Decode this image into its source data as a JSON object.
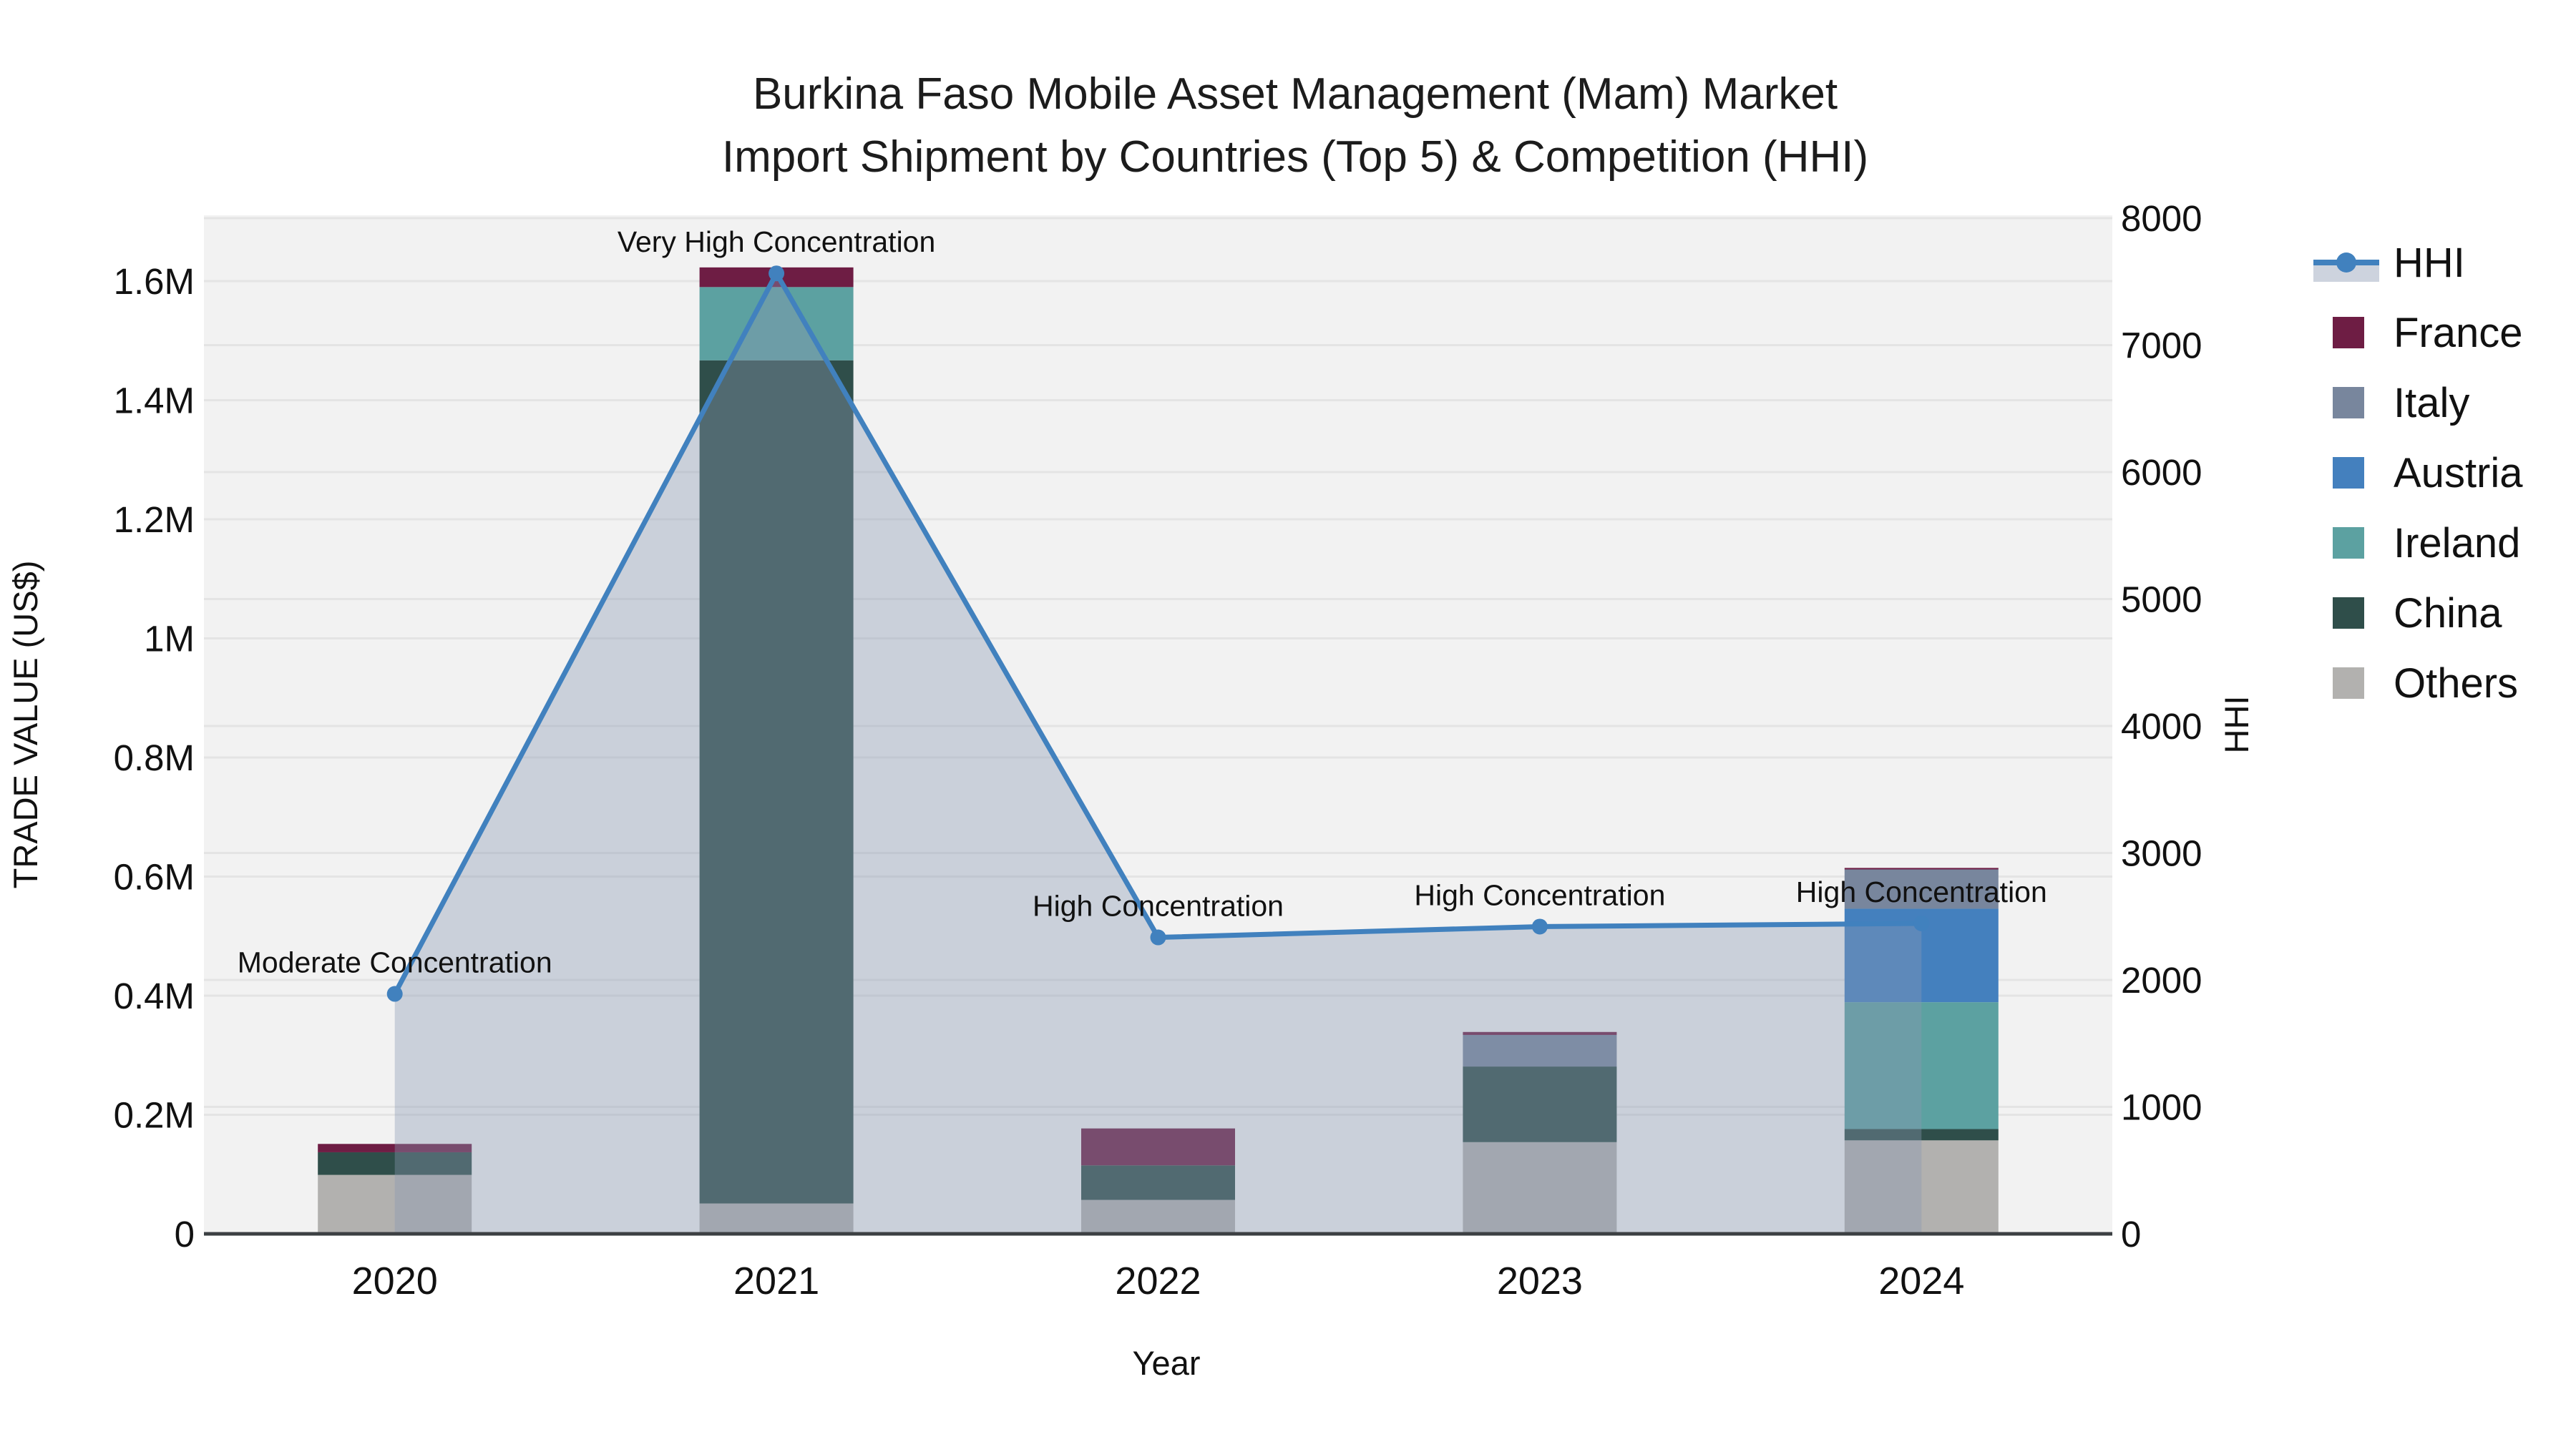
{
  "title": {
    "line1": "Burkina Faso Mobile Asset Management (Mam) Market",
    "line2": "Import Shipment by Countries (Top 5) & Competition (HHI)"
  },
  "axes": {
    "x": {
      "title": "Year"
    },
    "y_left": {
      "title": "TRADE VALUE (US$)"
    },
    "y_right": {
      "title": "HHI"
    }
  },
  "legend": {
    "items": [
      {
        "label": "HHI",
        "color": "#4181BE",
        "type": "line"
      },
      {
        "label": "France",
        "color": "#6E1D44",
        "type": "swatch"
      },
      {
        "label": "Italy",
        "color": "#78869D",
        "type": "swatch"
      },
      {
        "label": "Austria",
        "color": "#4480BE",
        "type": "swatch"
      },
      {
        "label": "Ireland",
        "color": "#5CA1A1",
        "type": "swatch"
      },
      {
        "label": "China",
        "color": "#2F4E4A",
        "type": "swatch"
      },
      {
        "label": "Others",
        "color": "#B2B1AF",
        "type": "swatch"
      }
    ]
  },
  "chart_data": {
    "type": "bar-line-combo",
    "categories": [
      "2020",
      "2021",
      "2022",
      "2023",
      "2024"
    ],
    "bar_series": [
      {
        "name": "France",
        "color": "#6E1D44",
        "values": [
          14000,
          33000,
          62000,
          5000,
          2500
        ]
      },
      {
        "name": "Italy",
        "color": "#78869D",
        "values": [
          0,
          0,
          0,
          53000,
          66000
        ]
      },
      {
        "name": "Austria",
        "color": "#4480BE",
        "values": [
          0,
          0,
          0,
          0,
          157000
        ]
      },
      {
        "name": "Ireland",
        "color": "#5CA1A1",
        "values": [
          0,
          123000,
          0,
          0,
          213000
        ]
      },
      {
        "name": "China",
        "color": "#2F4E4A",
        "values": [
          38000,
          1416000,
          58000,
          127000,
          19000
        ]
      },
      {
        "name": "Others",
        "color": "#B2B1AF",
        "values": [
          99000,
          51000,
          57000,
          154000,
          157000
        ]
      }
    ],
    "line_series": {
      "name": "HHI",
      "color": "#4181BE",
      "area_color": "rgba(138,152,179,0.38)",
      "values": [
        1890,
        7565,
        2335,
        2420,
        2445
      ]
    },
    "annotations": [
      "Moderate Concentration",
      "Very High Concentration",
      "High Concentration",
      "High Concentration",
      "High Concentration"
    ],
    "y_left": {
      "max": 1600000,
      "tick_values": [
        0,
        200000,
        400000,
        600000,
        800000,
        1000000,
        1200000,
        1400000,
        1600000
      ],
      "tick_labels": [
        "0",
        "0.2M",
        "0.4M",
        "0.6M",
        "0.8M",
        "1M",
        "1.2M",
        "1.4M",
        "1.6M"
      ]
    },
    "y_right": {
      "max": 8000,
      "tick_values": [
        0,
        1000,
        2000,
        3000,
        4000,
        5000,
        6000,
        7000,
        8000
      ],
      "tick_labels": [
        "0",
        "1000",
        "2000",
        "3000",
        "4000",
        "5000",
        "6000",
        "7000",
        "8000"
      ]
    },
    "grid": true,
    "legend_position": "right"
  },
  "colors": {
    "plot_background": "#F2F2F2",
    "gridline": "#E4E4E4",
    "axis_line": "#3C4043",
    "legend_area_band": "#CDD3DE",
    "text": "#111111"
  }
}
